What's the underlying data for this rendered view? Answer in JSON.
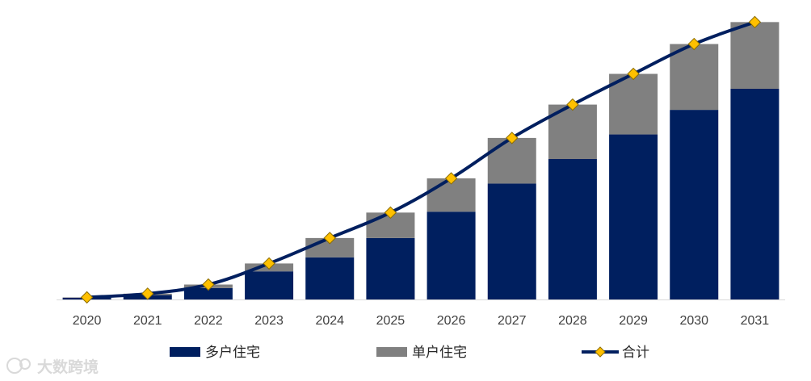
{
  "chart_data": {
    "type": "bar",
    "stacked": true,
    "categories": [
      "2020",
      "2021",
      "2022",
      "2023",
      "2024",
      "2025",
      "2026",
      "2027",
      "2028",
      "2029",
      "2030",
      "2031"
    ],
    "series": [
      {
        "name": "多户住宅",
        "kind": "bar",
        "color": "#001f5f",
        "values": [
          1,
          2.5,
          6.5,
          16,
          24,
          35,
          50,
          66,
          80,
          94,
          108,
          120
        ]
      },
      {
        "name": "单户住宅",
        "kind": "bar",
        "color": "#808080",
        "values": [
          0.2,
          0.8,
          2,
          4.5,
          11,
          14.5,
          19,
          26,
          31,
          34.5,
          37.5,
          38
        ]
      },
      {
        "name": "合计",
        "kind": "line",
        "color": "#001f5f",
        "marker_color": "#ffc000",
        "values": [
          1.2,
          3.3,
          8.5,
          20.5,
          35,
          49.5,
          69,
          92,
          111,
          128.5,
          145.5,
          158
        ]
      }
    ],
    "ylim": [
      0,
      160
    ],
    "grid": false,
    "legend_position": "bottom",
    "title": "",
    "xlabel": "",
    "ylabel": ""
  },
  "legend": {
    "items": [
      {
        "label": "多户住宅",
        "type": "bar",
        "color": "#001f5f"
      },
      {
        "label": "单户住宅",
        "type": "bar",
        "color": "#808080"
      },
      {
        "label": "合计",
        "type": "line",
        "color": "#001f5f",
        "marker_color": "#ffc000"
      }
    ]
  },
  "watermark": {
    "text": "大数跨境"
  }
}
